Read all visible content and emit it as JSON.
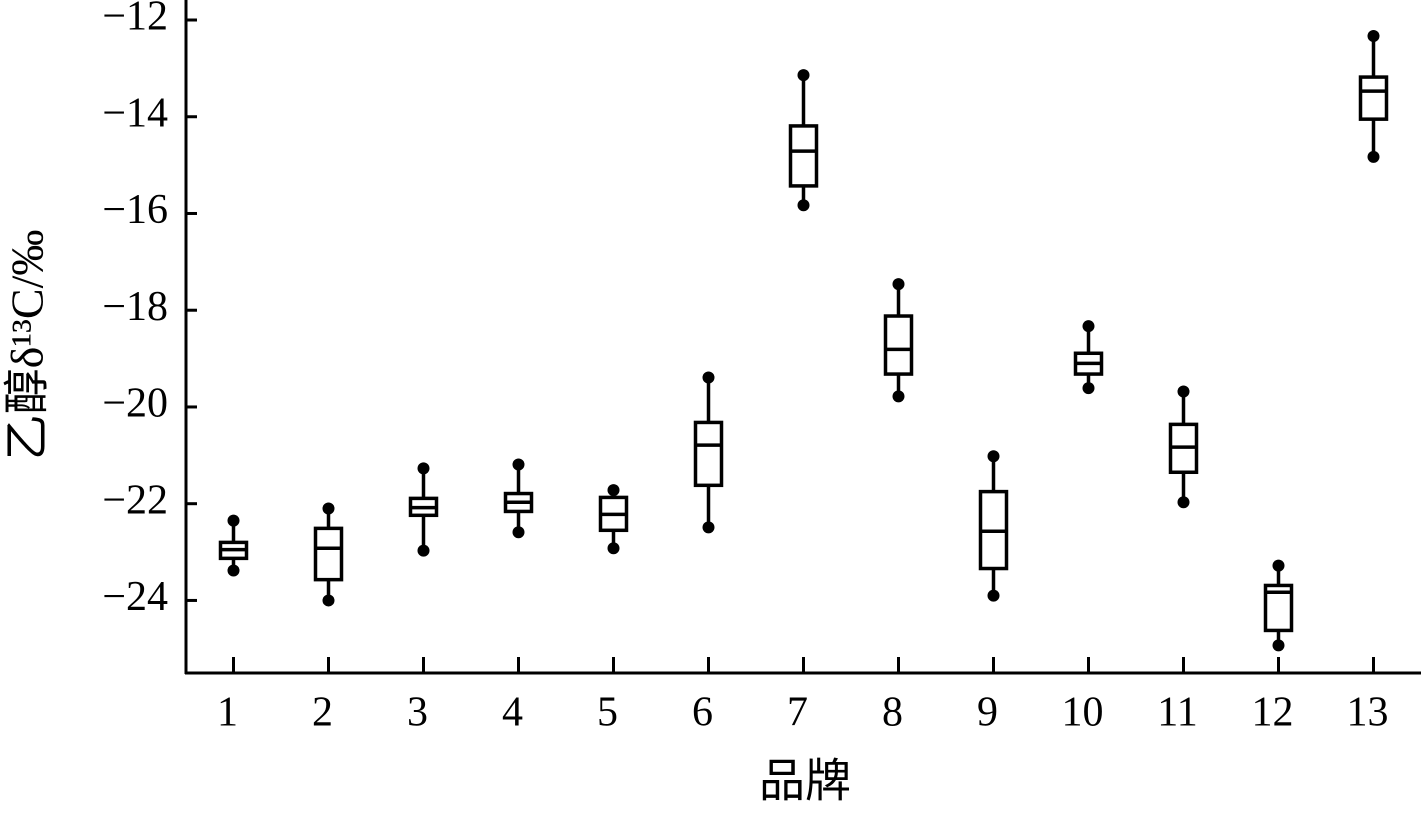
{
  "chart_data": {
    "type": "box",
    "x_label": "品牌",
    "y_label": "乙醇δ¹³C/‰",
    "categories": [
      "1",
      "2",
      "3",
      "4",
      "5",
      "6",
      "7",
      "8",
      "9",
      "10",
      "11",
      "12",
      "13"
    ],
    "low": [
      -23.38,
      -24.0,
      -22.97,
      -22.59,
      -22.92,
      -22.49,
      -15.83,
      -19.78,
      -23.9,
      -19.61,
      -21.97,
      -24.93,
      -14.83
    ],
    "q1": [
      -23.13,
      -23.57,
      -22.24,
      -22.16,
      -22.55,
      -21.62,
      -15.43,
      -19.32,
      -23.34,
      -19.32,
      -21.35,
      -24.62,
      -14.05
    ],
    "median": [
      -22.95,
      -22.92,
      -22.08,
      -21.97,
      -22.22,
      -20.79,
      -14.71,
      -18.81,
      -22.57,
      -19.1,
      -20.83,
      -23.83,
      -13.47
    ],
    "q3": [
      -22.8,
      -22.51,
      -21.89,
      -21.79,
      -21.87,
      -20.32,
      -14.19,
      -18.12,
      -21.75,
      -18.89,
      -20.36,
      -23.69,
      -13.18
    ],
    "high": [
      -22.35,
      -22.1,
      -21.27,
      -21.19,
      -21.72,
      -19.39,
      -13.14,
      -17.46,
      -21.02,
      -18.33,
      -19.68,
      -23.28,
      -12.33
    ],
    "color": "#000000",
    "ylim": [
      -25.5,
      -12
    ],
    "yticks": [
      {
        "value": -24,
        "label": "−24"
      },
      {
        "value": -22,
        "label": "−22"
      },
      {
        "value": -20,
        "label": "−20"
      },
      {
        "value": -18,
        "label": "−18"
      },
      {
        "value": -16,
        "label": "−16"
      },
      {
        "value": -14,
        "label": "−14"
      },
      {
        "value": -12,
        "label": "−12"
      }
    ],
    "grid": false
  }
}
